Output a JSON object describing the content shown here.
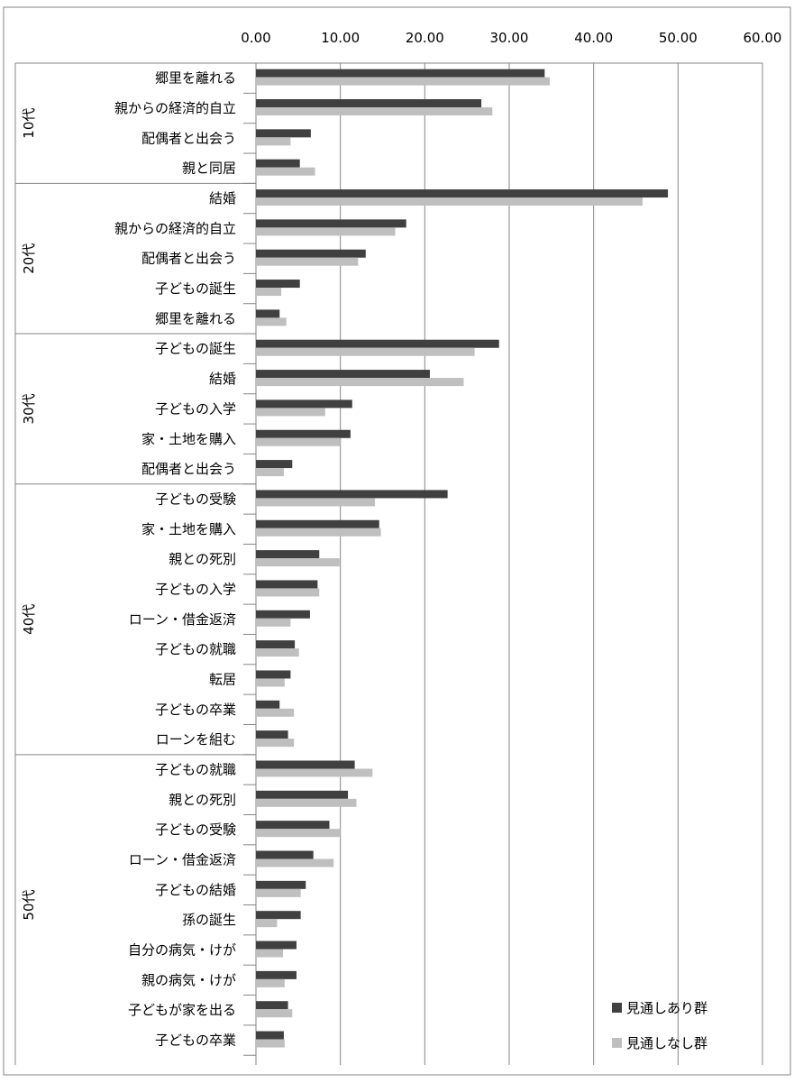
{
  "chart_data": {
    "type": "bar",
    "orientation": "horizontal",
    "title": "",
    "xlabel": "",
    "ylabel": "",
    "xlim": [
      0,
      60
    ],
    "x_ticks": [
      "0.00",
      "10.00",
      "20.00",
      "30.00",
      "40.00",
      "50.00",
      "60.00"
    ],
    "x_axis_position": "top",
    "grid": true,
    "legend_position": "bottom-right",
    "series": [
      {
        "name": "見通しあり群",
        "color": "#404040"
      },
      {
        "name": "見通しなし群",
        "color": "#bfbfbf"
      }
    ],
    "groups": [
      {
        "label": "10代",
        "items": [
          {
            "label": "郷里を離れる",
            "values": [
              34.2,
              34.8
            ]
          },
          {
            "label": "親からの経済的自立",
            "values": [
              26.7,
              28.0
            ]
          },
          {
            "label": "配偶者と出会う",
            "values": [
              6.5,
              4.1
            ]
          },
          {
            "label": "親と同居",
            "values": [
              5.2,
              7.0
            ]
          }
        ]
      },
      {
        "label": "20代",
        "items": [
          {
            "label": "結婚",
            "values": [
              48.8,
              45.8
            ]
          },
          {
            "label": "親からの経済的自立",
            "values": [
              17.8,
              16.5
            ]
          },
          {
            "label": "配偶者と出会う",
            "values": [
              13.0,
              12.1
            ]
          },
          {
            "label": "子どもの誕生",
            "values": [
              5.2,
              3.0
            ]
          },
          {
            "label": "郷里を離れる",
            "values": [
              2.8,
              3.6
            ]
          }
        ]
      },
      {
        "label": "30代",
        "items": [
          {
            "label": "子どもの誕生",
            "values": [
              28.8,
              25.9
            ]
          },
          {
            "label": "結婚",
            "values": [
              20.6,
              24.6
            ]
          },
          {
            "label": "子どもの入学",
            "values": [
              11.4,
              8.2
            ]
          },
          {
            "label": "家・土地を購入",
            "values": [
              11.2,
              10.0
            ]
          },
          {
            "label": "配偶者と出会う",
            "values": [
              4.3,
              3.3
            ]
          }
        ]
      },
      {
        "label": "40代",
        "items": [
          {
            "label": "子どもの受験",
            "values": [
              22.7,
              14.1
            ]
          },
          {
            "label": "家・土地を購入",
            "values": [
              14.6,
              14.8
            ]
          },
          {
            "label": "親との死別",
            "values": [
              7.5,
              9.9
            ]
          },
          {
            "label": "子どもの入学",
            "values": [
              7.3,
              7.5
            ]
          },
          {
            "label": "ローン・借金返済",
            "values": [
              6.4,
              4.1
            ]
          },
          {
            "label": "子どもの就職",
            "values": [
              4.6,
              5.1
            ]
          },
          {
            "label": "転居",
            "values": [
              4.1,
              3.4
            ]
          },
          {
            "label": "子どもの卒業",
            "values": [
              2.8,
              4.5
            ]
          },
          {
            "label": "ローンを組む",
            "values": [
              3.8,
              4.5
            ]
          }
        ]
      },
      {
        "label": "50代",
        "items": [
          {
            "label": "子どもの就職",
            "values": [
              11.7,
              13.8
            ]
          },
          {
            "label": "親との死別",
            "values": [
              10.9,
              11.9
            ]
          },
          {
            "label": "子どもの受験",
            "values": [
              8.7,
              10.0
            ]
          },
          {
            "label": "ローン・借金返済",
            "values": [
              6.8,
              9.2
            ]
          },
          {
            "label": "子どもの結婚",
            "values": [
              5.9,
              5.3
            ]
          },
          {
            "label": "孫の誕生",
            "values": [
              5.3,
              2.5
            ]
          },
          {
            "label": "自分の病気・けが",
            "values": [
              4.8,
              3.2
            ]
          },
          {
            "label": "親の病気・けが",
            "values": [
              4.8,
              3.4
            ]
          },
          {
            "label": "子どもが家を出る",
            "values": [
              3.8,
              4.3
            ]
          },
          {
            "label": "子どもの卒業",
            "values": [
              3.3,
              3.4
            ]
          }
        ]
      }
    ]
  }
}
